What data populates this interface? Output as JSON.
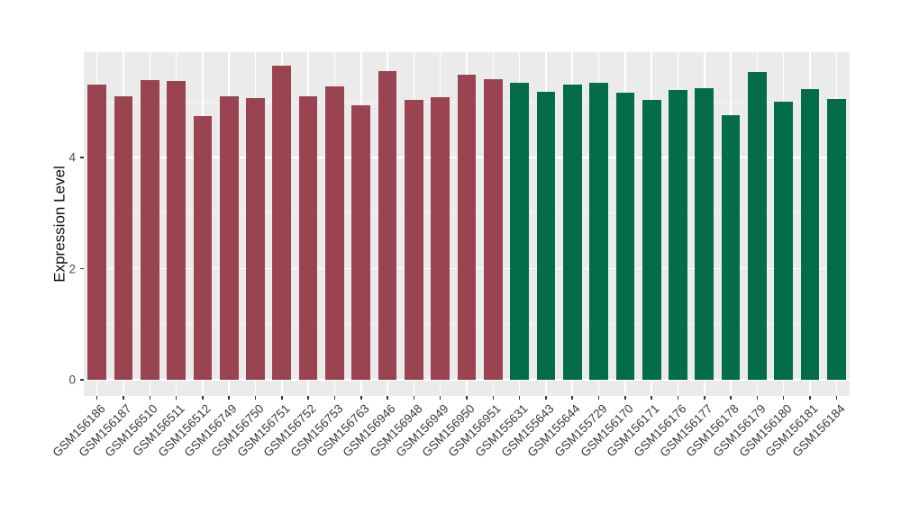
{
  "chart_data": {
    "type": "bar",
    "title": "",
    "xlabel": "",
    "ylabel": "Expression Level",
    "ylim": [
      0,
      5.89
    ],
    "yticks": [
      0,
      2,
      4
    ],
    "yminor_ticks": [
      1,
      3,
      5
    ],
    "grid": "on",
    "legend": "none",
    "bars": [
      {
        "label": "GSM156186",
        "value": 5.31,
        "group": 0
      },
      {
        "label": "GSM156187",
        "value": 5.1,
        "group": 0
      },
      {
        "label": "GSM156510",
        "value": 5.39,
        "group": 0
      },
      {
        "label": "GSM156511",
        "value": 5.37,
        "group": 0
      },
      {
        "label": "GSM156512",
        "value": 4.74,
        "group": 0
      },
      {
        "label": "GSM156749",
        "value": 5.1,
        "group": 0
      },
      {
        "label": "GSM156750",
        "value": 5.07,
        "group": 0
      },
      {
        "label": "GSM156751",
        "value": 5.65,
        "group": 0
      },
      {
        "label": "GSM156752",
        "value": 5.1,
        "group": 0
      },
      {
        "label": "GSM156753",
        "value": 5.28,
        "group": 0
      },
      {
        "label": "GSM156763",
        "value": 4.94,
        "group": 0
      },
      {
        "label": "GSM156946",
        "value": 5.55,
        "group": 0
      },
      {
        "label": "GSM156948",
        "value": 5.04,
        "group": 0
      },
      {
        "label": "GSM156949",
        "value": 5.08,
        "group": 0
      },
      {
        "label": "GSM156950",
        "value": 5.49,
        "group": 0
      },
      {
        "label": "GSM156951",
        "value": 5.41,
        "group": 0
      },
      {
        "label": "GSM155631",
        "value": 5.34,
        "group": 1
      },
      {
        "label": "GSM155643",
        "value": 5.18,
        "group": 1
      },
      {
        "label": "GSM155644",
        "value": 5.31,
        "group": 1
      },
      {
        "label": "GSM155729",
        "value": 5.34,
        "group": 1
      },
      {
        "label": "GSM156170",
        "value": 5.17,
        "group": 1
      },
      {
        "label": "GSM156171",
        "value": 5.04,
        "group": 1
      },
      {
        "label": "GSM156176",
        "value": 5.21,
        "group": 1
      },
      {
        "label": "GSM156177",
        "value": 5.25,
        "group": 1
      },
      {
        "label": "GSM156178",
        "value": 4.76,
        "group": 1
      },
      {
        "label": "GSM156179",
        "value": 5.54,
        "group": 1
      },
      {
        "label": "GSM156180",
        "value": 5.0,
        "group": 1
      },
      {
        "label": "GSM156181",
        "value": 5.23,
        "group": 1
      },
      {
        "label": "GSM156184",
        "value": 5.05,
        "group": 1
      }
    ]
  },
  "colors": {
    "group_0": "#9B4451",
    "group_1": "#026C4B",
    "panel_bg": "#EBEBEB",
    "grid_major": "#FFFFFF",
    "axis_text": "#4a4a4a",
    "axis_title": "#111111",
    "tick_mark": "#333333"
  }
}
